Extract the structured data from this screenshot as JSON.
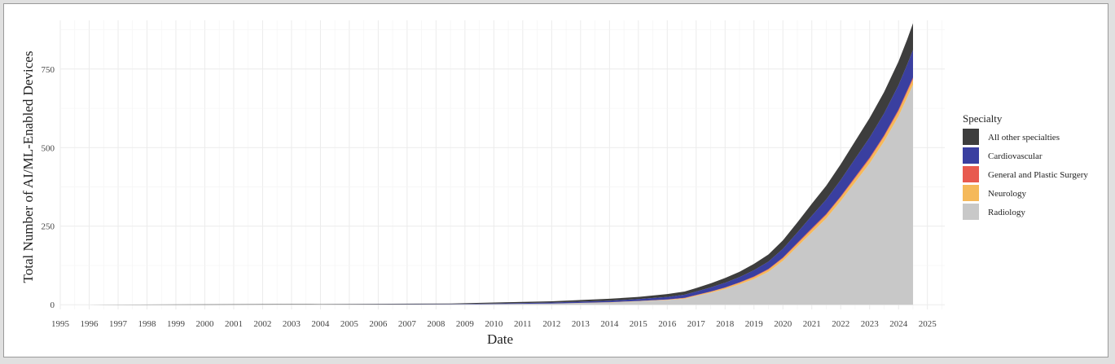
{
  "chart_data": {
    "type": "area",
    "stacked": true,
    "xlabel": "Date",
    "ylabel": "Total Number of AI/ML-Enabled Devices",
    "xlim": [
      1995,
      2025.6
    ],
    "ylim": [
      -15,
      905
    ],
    "x_ticks": [
      "1995",
      "1996",
      "1997",
      "1998",
      "1999",
      "2000",
      "2001",
      "2002",
      "2003",
      "2004",
      "2005",
      "2006",
      "2007",
      "2008",
      "2009",
      "2010",
      "2011",
      "2012",
      "2013",
      "2014",
      "2015",
      "2016",
      "2017",
      "2018",
      "2019",
      "2020",
      "2021",
      "2022",
      "2023",
      "2024",
      "2025"
    ],
    "y_ticks": [
      0,
      250,
      500,
      750
    ],
    "grid": true,
    "legend": {
      "title": "Specialty",
      "position": "right"
    },
    "x": [
      1996.0,
      2000.0,
      2004.0,
      2008.5,
      2010.0,
      2012.0,
      2014.0,
      2015.0,
      2016.0,
      2016.6,
      2017.0,
      2017.5,
      2018.0,
      2018.5,
      2019.0,
      2019.5,
      2020.0,
      2020.5,
      2021.0,
      2021.5,
      2022.0,
      2022.5,
      2023.0,
      2023.5,
      2024.0,
      2024.3,
      2024.5
    ],
    "series": [
      {
        "name": "Radiology",
        "color": "#c8c8c8",
        "values": [
          0,
          0,
          1,
          1,
          2,
          4,
          7,
          11,
          15,
          19,
          28,
          38,
          50,
          65,
          82,
          105,
          140,
          185,
          230,
          275,
          330,
          390,
          450,
          520,
          600,
          660,
          700
        ]
      },
      {
        "name": "Neurology",
        "color": "#f5b95a",
        "values": [
          0,
          0,
          0,
          0,
          0,
          0,
          1,
          1,
          1,
          2,
          2,
          3,
          4,
          5,
          6,
          7,
          8,
          9,
          10,
          11,
          12,
          13,
          14,
          15,
          16,
          17,
          18
        ]
      },
      {
        "name": "General and Plastic Surgery",
        "color": "#e85a4f",
        "values": [
          0,
          0,
          0,
          0,
          0,
          0,
          0,
          0,
          1,
          1,
          1,
          1,
          1,
          1,
          2,
          2,
          2,
          3,
          3,
          3,
          3,
          4,
          4,
          4,
          5,
          5,
          5
        ]
      },
      {
        "name": "Cardiovascular",
        "color": "#3a3fa0",
        "values": [
          0,
          0,
          0,
          1,
          2,
          3,
          5,
          6,
          8,
          10,
          11,
          13,
          15,
          17,
          20,
          23,
          28,
          33,
          40,
          46,
          52,
          58,
          64,
          70,
          78,
          83,
          88
        ]
      },
      {
        "name": "All other specialties",
        "color": "#3d3d3d",
        "values": [
          0,
          1,
          1,
          2,
          3,
          4,
          6,
          7,
          9,
          10,
          11,
          13,
          15,
          17,
          20,
          23,
          27,
          32,
          38,
          44,
          50,
          56,
          62,
          68,
          75,
          80,
          85
        ]
      }
    ]
  }
}
